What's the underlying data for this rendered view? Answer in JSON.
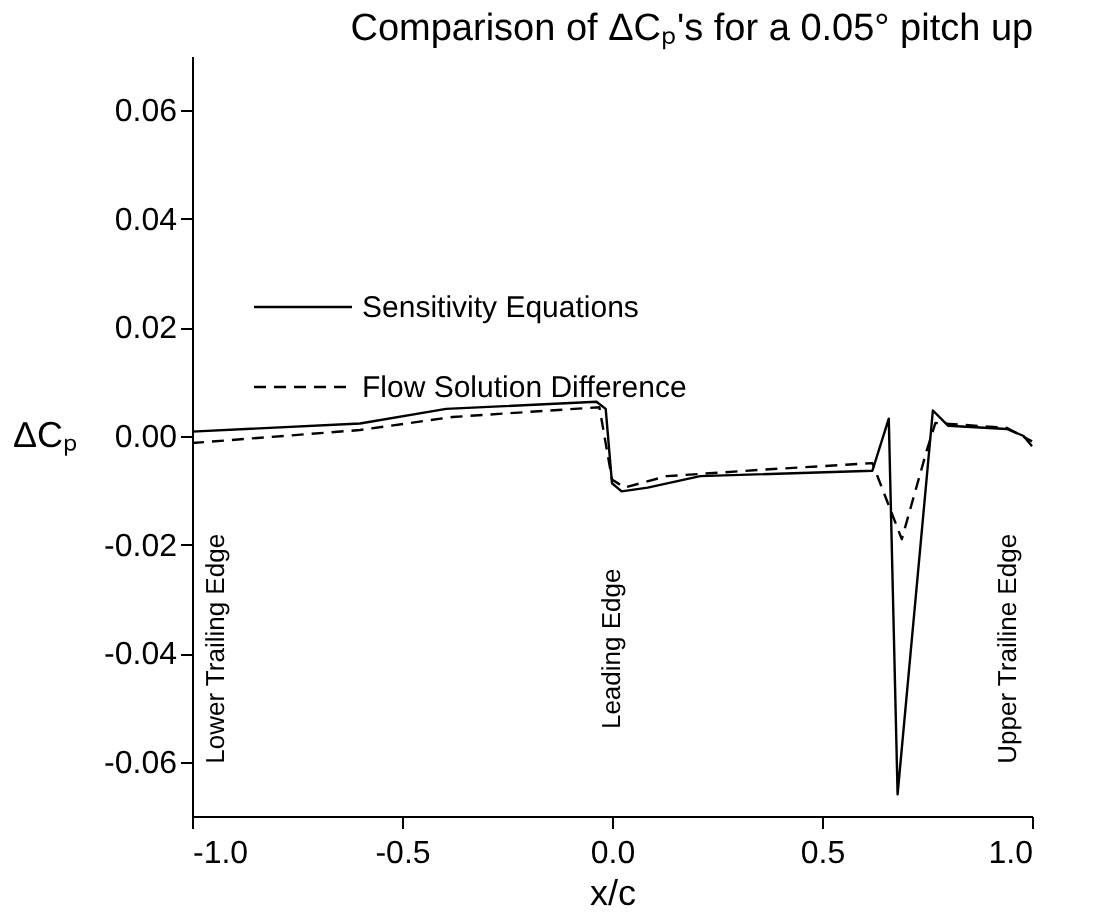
{
  "chart_data": {
    "type": "line",
    "title": "Comparison of ΔCₚ's for a 0.05° pitch up",
    "xlabel": "x/c",
    "ylabel": "ΔCₚ",
    "xlim": [
      -1.0,
      1.0
    ],
    "ylim": [
      -0.07,
      0.07
    ],
    "xticks": [
      {
        "value": -1,
        "label": "-1.0"
      },
      {
        "value": -0.5,
        "label": "-0.5"
      },
      {
        "value": 0,
        "label": "0.0"
      },
      {
        "value": 0.5,
        "label": "0.5"
      },
      {
        "value": 1,
        "label": "1.0"
      }
    ],
    "yticks": [
      {
        "value": -0.06,
        "label": "-0.06"
      },
      {
        "value": -0.04,
        "label": "-0.04"
      },
      {
        "value": -0.02,
        "label": "-0.02"
      },
      {
        "value": 0,
        "label": "0.00"
      },
      {
        "value": 0.02,
        "label": "0.02"
      },
      {
        "value": 0.04,
        "label": "0.04"
      },
      {
        "value": 0.06,
        "label": "0.06"
      }
    ],
    "grid": false,
    "legend": "top left",
    "marker": "none",
    "series": [
      {
        "name": "Sensitivity Equations",
        "color": "#000000",
        "line_style": "solid",
        "x": [
          -1.0,
          -0.6,
          -0.395,
          -0.037,
          -0.015,
          0.0,
          0.023,
          0.085,
          0.21,
          0.62,
          0.659,
          0.68,
          0.764,
          0.8,
          0.94,
          0.98,
          1.0
        ],
        "values": [
          0.0008,
          0.0023,
          0.005,
          0.0063,
          0.005,
          -0.0087,
          -0.0102,
          -0.0095,
          -0.0074,
          -0.0064,
          0.0032,
          -0.066,
          0.0047,
          0.0019,
          0.0013,
          0.0,
          -0.0019
        ]
      },
      {
        "name": "Flow Solution Difference",
        "color": "#000000",
        "line_style": "dashed",
        "x": [
          -1.0,
          -0.6,
          -0.38,
          -0.03,
          0.0,
          0.03,
          0.13,
          0.36,
          0.62,
          0.69,
          0.75,
          0.77,
          0.94,
          1.0
        ],
        "values": [
          -0.0013,
          0.0011,
          0.0035,
          0.0053,
          -0.008,
          -0.0095,
          -0.0074,
          -0.0062,
          -0.005,
          -0.019,
          -0.0025,
          0.0024,
          0.0015,
          -0.001
        ]
      }
    ],
    "annotations": [
      "Lower Trailing Edge",
      "Leading Edge",
      "Upper Trailine Edge"
    ]
  }
}
